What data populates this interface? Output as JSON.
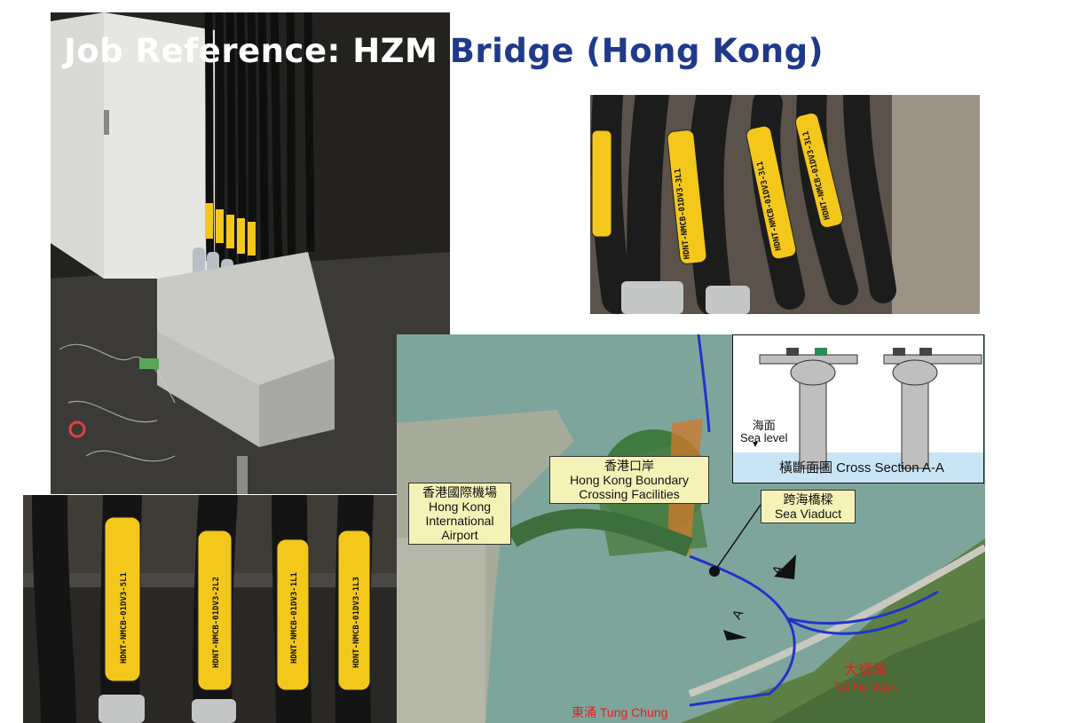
{
  "title": {
    "part1": "Job Reference: HZM",
    "part2": "Bridge (Hong Kong)"
  },
  "photos": {
    "top_right_tags": [
      "HDNT-NMCB-01DV3-3L1",
      "HDNT-NMCB-01DV3-3L1",
      "HDNT-NMCB-01DV3-3L1"
    ],
    "bottom_tags": [
      "HDNT-NMCB-01DV3-5L1",
      "HDNT-NMCB-01DV3-2L2",
      "HDNT-NMCB-01DV3-1L1",
      "HDNT-NMCB-01DV3-1L3"
    ]
  },
  "map": {
    "airport_zh": "香港國際機場",
    "airport_en_1": "Hong Kong",
    "airport_en_2": "International",
    "airport_en_3": "Airport",
    "boundary_zh": "香港口岸",
    "boundary_en_1": "Hong Kong Boundary",
    "boundary_en_2": "Crossing Facilities",
    "viaduct_zh": "跨海橋樑",
    "viaduct_en": "Sea Viaduct",
    "section_marker": "A",
    "tung_chung_zh": "東涌",
    "tung_chung_en": "Tung Chung",
    "tai_ho_wan_zh": "大蠔灣",
    "tai_ho_wan_en": "Tai Ho Wan",
    "cross_section": {
      "sea_level_zh": "海面",
      "sea_level_en": "Sea level",
      "caption": "橫斷面圖 Cross Section A-A"
    }
  },
  "colors": {
    "title_blue": "#1f3a8a",
    "route_blue": "#2233cc",
    "label_fill": "#f5f2b8",
    "red_text": "#e02020",
    "tag_yellow": "#f3c81b"
  }
}
